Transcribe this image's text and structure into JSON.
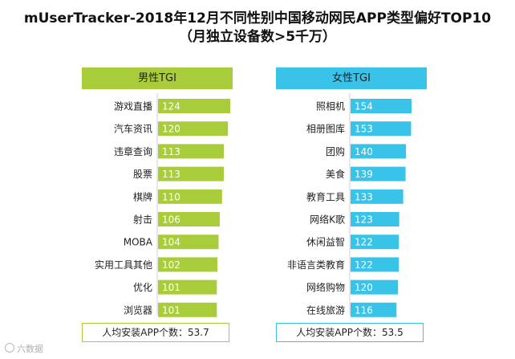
{
  "title_line1": "mUserTracker-2018年12月不同性别中国移动网民APP类型偏好TOP10",
  "title_line2": "（月独立设备数>5千万）",
  "watermark_text": "六数据",
  "chart_data": [
    {
      "type": "bar",
      "orientation": "horizontal",
      "header": "男性TGI",
      "color": "#a9cd3a",
      "categories": [
        "游戏直播",
        "汽车资讯",
        "违章查询",
        "股票",
        "棋牌",
        "射击",
        "MOBA",
        "实用工具其他",
        "优化",
        "浏览器"
      ],
      "values": [
        124,
        120,
        113,
        113,
        110,
        106,
        104,
        102,
        101,
        101
      ],
      "footer": "人均安装APP个数：53.7"
    },
    {
      "type": "bar",
      "orientation": "horizontal",
      "header": "女性TGI",
      "color": "#39c3e9",
      "categories": [
        "照相机",
        "相册图库",
        "团购",
        "美食",
        "教育工具",
        "网络K歌",
        "休闲益智",
        "非语言类教育",
        "网络购物",
        "在线旅游"
      ],
      "values": [
        154,
        153,
        140,
        139,
        133,
        123,
        122,
        122,
        120,
        116
      ],
      "footer": "人均安装APP个数：53.5"
    }
  ]
}
